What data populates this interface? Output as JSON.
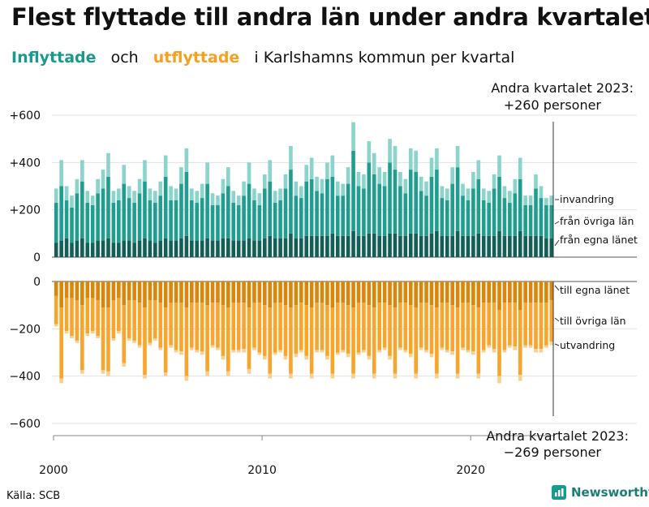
{
  "title": "Flest flyttade till andra län under andra kvartalet",
  "subtitle": {
    "inflow": "Inflyttade",
    "and": "och",
    "outflow": "utflyttade",
    "rest": "i Karlshamns  kommun  per  kvartal"
  },
  "source": "Källa: SCB",
  "logo": "Newsworthy",
  "colors": {
    "in_local": "#115f57",
    "in_other": "#1f9e90",
    "in_emig": "#8ad4cc",
    "out_local": "#d9860b",
    "out_other": "#f7a52d",
    "out_emig": "#fbd08f"
  },
  "chart_data": {
    "type": "bar",
    "stacked": true,
    "x_labels": [
      "2000",
      "2010",
      "2020"
    ],
    "x_start": "2000 Q1",
    "x_end": "2023 Q2",
    "ylim_top": [
      0,
      600
    ],
    "ylim_bottom": [
      -600,
      0
    ],
    "yticks_top": [
      "+600",
      "+400",
      "+200",
      "0"
    ],
    "yticks_bottom": [
      "0",
      "−200",
      "−400",
      "−600"
    ],
    "inflow_series": [
      "från egna länet",
      "från övriga län",
      "invandring"
    ],
    "outflow_series": [
      "till egna länet",
      "till övriga län",
      "utvandring"
    ],
    "annotation_top": {
      "line1": "Andra kvartalet 2023:",
      "line2": "+260 personer"
    },
    "annotation_bottom": {
      "line1": "Andra kvartalet 2023:",
      "line2": "−269 personer"
    },
    "inflow_totals": [
      290,
      410,
      300,
      260,
      330,
      410,
      280,
      260,
      330,
      370,
      440,
      280,
      290,
      390,
      300,
      280,
      330,
      410,
      290,
      280,
      320,
      430,
      300,
      290,
      380,
      460,
      290,
      280,
      310,
      400,
      270,
      260,
      330,
      380,
      280,
      260,
      320,
      400,
      290,
      270,
      350,
      410,
      280,
      290,
      350,
      470,
      320,
      300,
      390,
      420,
      340,
      330,
      400,
      430,
      320,
      310,
      380,
      570,
      360,
      350,
      490,
      440,
      380,
      360,
      500,
      470,
      360,
      330,
      460,
      450,
      340,
      320,
      420,
      460,
      300,
      290,
      380,
      470,
      310,
      290,
      360,
      410,
      290,
      280,
      350,
      430,
      300,
      280,
      330,
      420,
      260,
      260,
      350,
      300,
      250,
      260
    ],
    "outflow_totals": [
      -190,
      -430,
      -220,
      -240,
      -260,
      -390,
      -230,
      -220,
      -240,
      -390,
      -400,
      -250,
      -220,
      -360,
      -250,
      -260,
      -280,
      -410,
      -270,
      -250,
      -290,
      -400,
      -280,
      -300,
      -310,
      -420,
      -290,
      -300,
      -310,
      -400,
      -280,
      -290,
      -330,
      -400,
      -300,
      -300,
      -300,
      -390,
      -290,
      -310,
      -330,
      -410,
      -310,
      -300,
      -330,
      -410,
      -320,
      -300,
      -330,
      -410,
      -300,
      -300,
      -330,
      -410,
      -310,
      -300,
      -320,
      -410,
      -310,
      -300,
      -330,
      -410,
      -300,
      -290,
      -330,
      -410,
      -290,
      -300,
      -320,
      -410,
      -290,
      -300,
      -320,
      -410,
      -290,
      -300,
      -310,
      -410,
      -290,
      -300,
      -310,
      -410,
      -300,
      -280,
      -300,
      -430,
      -300,
      -280,
      -290,
      -420,
      -280,
      -280,
      -300,
      -300,
      -280,
      -269
    ],
    "inflow_local": [
      60,
      70,
      80,
      60,
      70,
      80,
      60,
      60,
      70,
      70,
      80,
      60,
      60,
      70,
      70,
      60,
      70,
      80,
      70,
      60,
      70,
      80,
      70,
      70,
      80,
      90,
      70,
      70,
      70,
      80,
      70,
      70,
      80,
      80,
      70,
      70,
      70,
      80,
      70,
      70,
      80,
      90,
      80,
      80,
      80,
      100,
      80,
      80,
      90,
      90,
      90,
      90,
      90,
      100,
      90,
      90,
      90,
      110,
      90,
      90,
      100,
      100,
      90,
      90,
      100,
      100,
      90,
      90,
      100,
      100,
      90,
      90,
      100,
      110,
      90,
      90,
      90,
      110,
      90,
      90,
      90,
      100,
      90,
      90,
      90,
      110,
      90,
      90,
      90,
      110,
      90,
      90,
      90,
      90,
      80,
      80
    ],
    "inflow_emig": [
      60,
      110,
      60,
      50,
      60,
      90,
      50,
      40,
      60,
      80,
      100,
      50,
      50,
      80,
      50,
      50,
      60,
      90,
      50,
      50,
      60,
      90,
      60,
      50,
      70,
      100,
      50,
      50,
      60,
      90,
      50,
      40,
      60,
      80,
      50,
      40,
      60,
      90,
      50,
      50,
      60,
      90,
      50,
      50,
      60,
      100,
      60,
      50,
      70,
      90,
      60,
      60,
      70,
      90,
      60,
      50,
      70,
      120,
      60,
      60,
      90,
      90,
      70,
      60,
      100,
      100,
      60,
      60,
      90,
      90,
      60,
      60,
      80,
      90,
      50,
      50,
      70,
      90,
      50,
      50,
      70,
      80,
      50,
      50,
      60,
      90,
      50,
      50,
      60,
      90,
      40,
      40,
      60,
      50,
      30,
      40
    ],
    "outflow_local": [
      -60,
      -110,
      -70,
      -70,
      -80,
      -100,
      -70,
      -70,
      -80,
      -110,
      -110,
      -80,
      -70,
      -100,
      -80,
      -80,
      -90,
      -110,
      -80,
      -80,
      -90,
      -110,
      -90,
      -90,
      -90,
      -110,
      -90,
      -90,
      -90,
      -100,
      -90,
      -90,
      -100,
      -110,
      -90,
      -90,
      -90,
      -110,
      -90,
      -90,
      -100,
      -110,
      -90,
      -90,
      -100,
      -110,
      -100,
      -90,
      -100,
      -110,
      -90,
      -90,
      -100,
      -110,
      -90,
      -90,
      -100,
      -110,
      -90,
      -90,
      -100,
      -110,
      -90,
      -90,
      -100,
      -110,
      -90,
      -90,
      -100,
      -110,
      -90,
      -90,
      -100,
      -110,
      -90,
      -90,
      -100,
      -110,
      -90,
      -90,
      -100,
      -110,
      -90,
      -90,
      -90,
      -120,
      -90,
      -90,
      -90,
      -120,
      -90,
      -90,
      -90,
      -90,
      -90,
      -80
    ],
    "outflow_emig": [
      -10,
      -20,
      -10,
      -10,
      -10,
      -15,
      -10,
      -10,
      -10,
      -15,
      -20,
      -10,
      -10,
      -15,
      -10,
      -10,
      -10,
      -15,
      -10,
      -10,
      -10,
      -15,
      -10,
      -10,
      -15,
      -20,
      -10,
      -10,
      -15,
      -20,
      -10,
      -10,
      -15,
      -20,
      -10,
      -10,
      -15,
      -20,
      -10,
      -10,
      -15,
      -20,
      -10,
      -10,
      -15,
      -20,
      -15,
      -10,
      -15,
      -20,
      -10,
      -10,
      -15,
      -20,
      -10,
      -10,
      -15,
      -20,
      -10,
      -10,
      -15,
      -20,
      -10,
      -10,
      -15,
      -20,
      -10,
      -10,
      -15,
      -20,
      -10,
      -10,
      -15,
      -20,
      -10,
      -10,
      -15,
      -20,
      -10,
      -10,
      -15,
      -20,
      -10,
      -10,
      -15,
      -30,
      -10,
      -10,
      -15,
      -25,
      -10,
      -10,
      -15,
      -15,
      -10,
      -15
    ]
  }
}
